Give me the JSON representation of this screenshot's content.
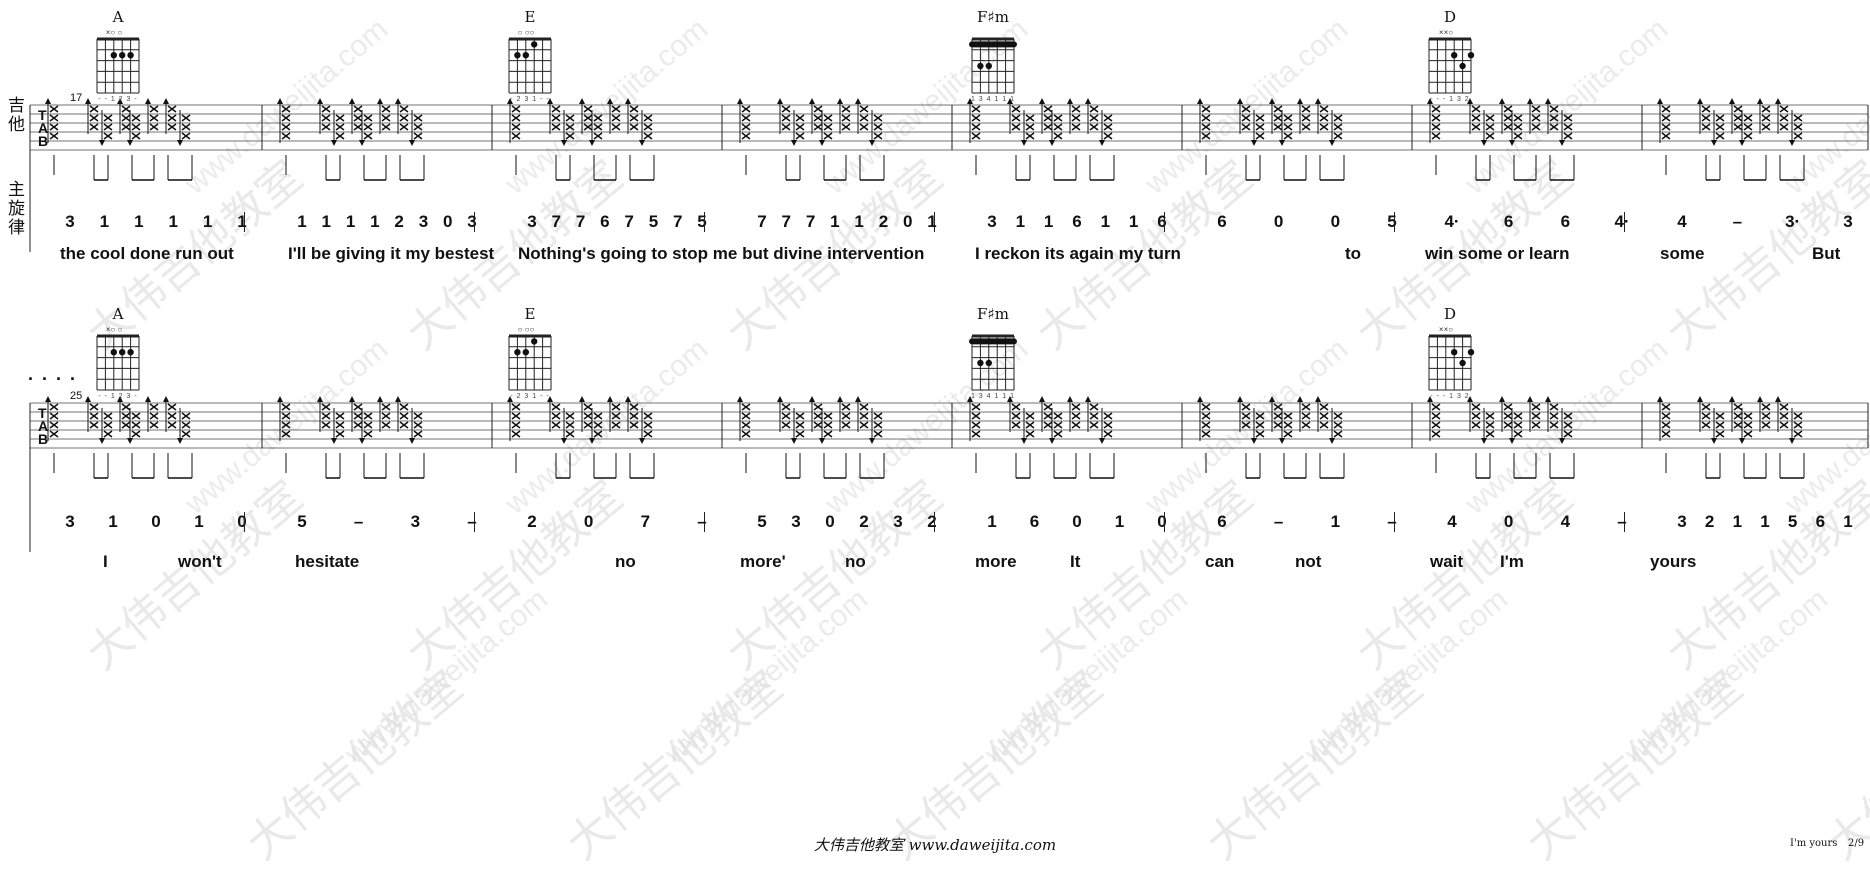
{
  "sheet": {
    "part_labels": {
      "guitar": "吉他",
      "melody": "主旋律"
    },
    "tab_clef": [
      "T",
      "A",
      "B"
    ],
    "footer": "大伟吉他教室 www.daweijita.com",
    "song_title": "I'm yours",
    "page_number": "2/9",
    "watermark_text": "大伟吉他教室",
    "watermark_url": "www.daweijita.com",
    "ellipsis": ". . . ."
  },
  "systems": [
    {
      "measure_number": "17",
      "chords": [
        {
          "name": "A",
          "fingering": "- - 1 2 3 -",
          "open_mute": "×○        ○",
          "chord": "A"
        },
        {
          "name": "E",
          "fingering": "- 2 3 1 - -",
          "open_mute": "○        ○○",
          "chord": "E"
        },
        {
          "name": "F♯m",
          "fingering": "1 3 4 1 1 1",
          "open_mute": "",
          "chord": "Fsm"
        },
        {
          "name": "D",
          "fingering": "- - - 1 3 2",
          "open_mute": "××○",
          "chord": "D"
        }
      ],
      "melody": [
        [
          "3",
          "1",
          "1",
          "1",
          "1",
          "1"
        ],
        [
          "1",
          "1",
          "1",
          "1",
          "2",
          "3",
          "0",
          "3"
        ],
        [
          "3",
          "7",
          "7",
          "6",
          "7",
          "5",
          "7",
          "5"
        ],
        [
          "7",
          "7",
          "7",
          "1",
          "1",
          "2",
          "0",
          "1"
        ],
        [
          "3",
          "1",
          "1",
          "6",
          "1",
          "1",
          "6"
        ],
        [
          "6",
          "0",
          "0",
          "5"
        ],
        [
          "4·",
          "6",
          "6",
          "4·"
        ],
        [
          "4",
          "–",
          "3·",
          "3"
        ]
      ],
      "lyrics": [
        "the cool done run out",
        "I'll be giving it my bestest",
        "Nothing's going to stop me but divine intervention",
        "I reckon its again my turn",
        "to",
        "win some or learn",
        "some",
        "But"
      ]
    },
    {
      "measure_number": "25",
      "chords": [
        {
          "name": "A",
          "fingering": "- - 1 2 3 -",
          "open_mute": "×○        ○",
          "chord": "A"
        },
        {
          "name": "E",
          "fingering": "- 2 3 1 - -",
          "open_mute": "○        ○○",
          "chord": "E"
        },
        {
          "name": "F♯m",
          "fingering": "1 3 4 1 1 1",
          "open_mute": "",
          "chord": "Fsm"
        },
        {
          "name": "D",
          "fingering": "- - - 1 3 2",
          "open_mute": "××○",
          "chord": "D"
        }
      ],
      "melody": [
        [
          "3",
          "1",
          "0",
          "1",
          "0"
        ],
        [
          "5",
          "–",
          "3",
          "–"
        ],
        [
          "2",
          "0",
          "7",
          "–"
        ],
        [
          "5",
          "3",
          "0",
          "2",
          "3",
          "2"
        ],
        [
          "1",
          "6",
          "0",
          "1",
          "0"
        ],
        [
          "6",
          "–",
          "1",
          "–"
        ],
        [
          "4",
          "0",
          "4",
          "–"
        ],
        [
          "3",
          "2",
          "1",
          "1",
          "5",
          "6",
          "1"
        ]
      ],
      "lyrics": [
        "I",
        "won't",
        "hesitate",
        "no",
        "more'",
        "no",
        "more",
        "It",
        "can",
        "not",
        "wait",
        "I'm",
        "yours"
      ]
    }
  ]
}
